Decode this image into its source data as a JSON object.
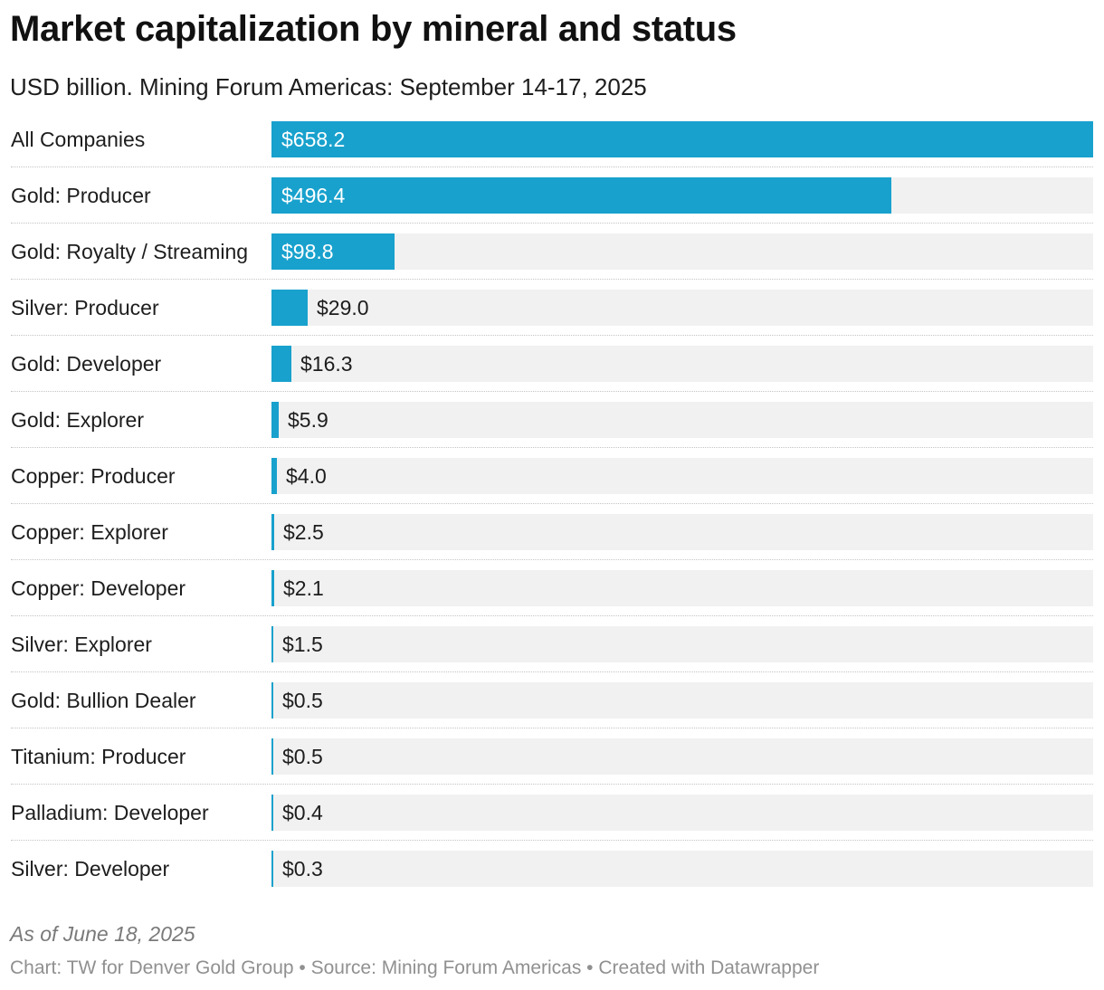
{
  "chart_data": {
    "type": "bar",
    "orientation": "horizontal",
    "title": "Market capitalization by mineral and status",
    "subtitle": "USD billion. Mining Forum Americas: September 14-17, 2025",
    "categories": [
      "All Companies",
      "Gold: Producer",
      "Gold: Royalty / Streaming",
      "Silver: Producer",
      "Gold: Developer",
      "Gold: Explorer",
      "Copper: Producer",
      "Copper: Explorer",
      "Copper: Developer",
      "Silver: Explorer",
      "Gold: Bullion Dealer",
      "Titanium: Producer",
      "Palladium: Developer",
      "Silver: Developer"
    ],
    "values": [
      658.2,
      496.4,
      98.8,
      29.0,
      16.3,
      5.9,
      4.0,
      2.5,
      2.1,
      1.5,
      0.5,
      0.5,
      0.4,
      0.3
    ],
    "value_labels": [
      "$658.2",
      "$496.4",
      "$98.8",
      "$29.0",
      "$16.3",
      "$5.9",
      "$4.0",
      "$2.5",
      "$2.1",
      "$1.5",
      "$0.5",
      "$0.5",
      "$0.4",
      "$0.3"
    ],
    "xlim": [
      0,
      658.2
    ],
    "xlabel": "",
    "ylabel": "",
    "bar_color": "#18a1cd",
    "track_color": "#f1f1f1",
    "grid": false,
    "note": "As of June 18, 2025",
    "footer": "Chart: TW for Denver Gold Group • Source: Mining Forum Americas • Created with Datawrapper"
  }
}
